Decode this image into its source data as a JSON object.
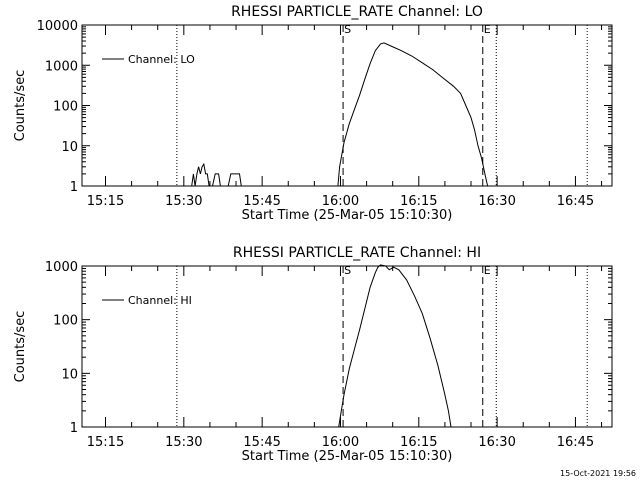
{
  "footer": {
    "timestamp": "15-Oct-2021 19:56"
  },
  "chart_data": [
    {
      "type": "line",
      "title": "RHESSI PARTICLE_RATE Channel: LO",
      "xlabel": "Start Time (25-Mar-05 15:10:30)",
      "ylabel": "Counts/sec",
      "yscale": "log",
      "xlim": [
        "15:10:30",
        "16:52:00"
      ],
      "ylim": [
        1,
        10000
      ],
      "x_ticks": [
        "15:15",
        "15:30",
        "15:45",
        "16:00",
        "16:15",
        "16:30",
        "16:45"
      ],
      "y_ticks": [
        "1",
        "10",
        "100",
        "1000",
        "10000"
      ],
      "legend_position": "top-left",
      "series": [
        {
          "name": "Channel: LO",
          "color": "#000000",
          "segments": [
            [
              [
                "15:31:30",
                1
              ],
              [
                "15:31:50",
                2
              ],
              [
                "15:32:10",
                1
              ],
              [
                "15:32:30",
                2
              ],
              [
                "15:32:50",
                3
              ],
              [
                "15:33:10",
                2
              ],
              [
                "15:33:30",
                3
              ],
              [
                "15:33:50",
                3.5
              ],
              [
                "15:34:10",
                2
              ],
              [
                "15:34:30",
                2
              ],
              [
                "15:34:50",
                1
              ]
            ],
            [
              [
                "15:35:30",
                1
              ],
              [
                "15:36:00",
                2
              ],
              [
                "15:36:40",
                2
              ],
              [
                "15:37:00",
                1
              ]
            ],
            [
              [
                "15:38:30",
                1
              ],
              [
                "15:39:00",
                2
              ],
              [
                "15:40:40",
                2
              ],
              [
                "15:41:00",
                1
              ]
            ],
            [
              [
                "15:59:30",
                1
              ],
              [
                "15:59:50",
                3
              ],
              [
                "16:00:40",
                12
              ],
              [
                "16:01:40",
                35
              ],
              [
                "16:02:40",
                80
              ],
              [
                "16:03:40",
                180
              ],
              [
                "16:04:40",
                450
              ],
              [
                "16:05:40",
                1100
              ],
              [
                "16:06:40",
                2300
              ],
              [
                "16:07:40",
                3400
              ],
              [
                "16:08:20",
                3600
              ],
              [
                "16:09:40",
                3000
              ],
              [
                "16:11:40",
                2300
              ],
              [
                "16:13:40",
                1700
              ],
              [
                "16:15:40",
                1150
              ],
              [
                "16:17:40",
                780
              ],
              [
                "16:19:40",
                480
              ],
              [
                "16:21:40",
                300
              ],
              [
                "16:23:00",
                200
              ],
              [
                "16:24:00",
                100
              ],
              [
                "16:25:00",
                50
              ],
              [
                "16:25:40",
                25
              ],
              [
                "16:26:20",
                10
              ],
              [
                "16:27:00",
                5
              ],
              [
                "16:27:40",
                2
              ],
              [
                "16:28:10",
                1
              ]
            ]
          ]
        }
      ],
      "annotations": [
        {
          "label": "S",
          "time": "16:00:30",
          "style": "dashed"
        },
        {
          "label": "E",
          "time": "16:27:15",
          "style": "dashed"
        }
      ],
      "dotted_lines": [
        "15:28:40",
        "16:29:50",
        "16:47:15"
      ]
    },
    {
      "type": "line",
      "title": "RHESSI PARTICLE_RATE Channel: HI",
      "xlabel": "Start Time (25-Mar-05 15:10:30)",
      "ylabel": "Counts/sec",
      "yscale": "log",
      "xlim": [
        "15:10:30",
        "16:52:00"
      ],
      "ylim": [
        1,
        1000
      ],
      "x_ticks": [
        "15:15",
        "15:30",
        "15:45",
        "16:00",
        "16:15",
        "16:30",
        "16:45"
      ],
      "y_ticks": [
        "1",
        "10",
        "100",
        "1000"
      ],
      "legend_position": "top-left",
      "series": [
        {
          "name": "Channel: HI",
          "color": "#000000",
          "segments": [
            [
              [
                "15:59:40",
                1
              ],
              [
                "16:00:10",
                2
              ],
              [
                "16:00:40",
                4
              ],
              [
                "16:01:40",
                12
              ],
              [
                "16:02:40",
                28
              ],
              [
                "16:03:40",
                65
              ],
              [
                "16:04:40",
                160
              ],
              [
                "16:05:40",
                400
              ],
              [
                "16:06:40",
                750
              ],
              [
                "16:07:10",
                950
              ],
              [
                "16:07:40",
                1050
              ],
              [
                "16:08:40",
                1000
              ],
              [
                "16:09:20",
                850
              ],
              [
                "16:10:10",
                950
              ],
              [
                "16:11:10",
                850
              ],
              [
                "16:12:40",
                550
              ],
              [
                "16:14:10",
                280
              ],
              [
                "16:15:40",
                130
              ],
              [
                "16:17:10",
                45
              ],
              [
                "16:18:40",
                14
              ],
              [
                "16:20:00",
                4
              ],
              [
                "16:20:40",
                2
              ],
              [
                "16:21:10",
                1
              ]
            ]
          ]
        }
      ],
      "annotations": [
        {
          "label": "S",
          "time": "16:00:30",
          "style": "dashed"
        },
        {
          "label": "E",
          "time": "16:27:15",
          "style": "dashed"
        }
      ],
      "dotted_lines": [
        "15:28:40",
        "16:29:50",
        "16:47:15"
      ]
    }
  ]
}
